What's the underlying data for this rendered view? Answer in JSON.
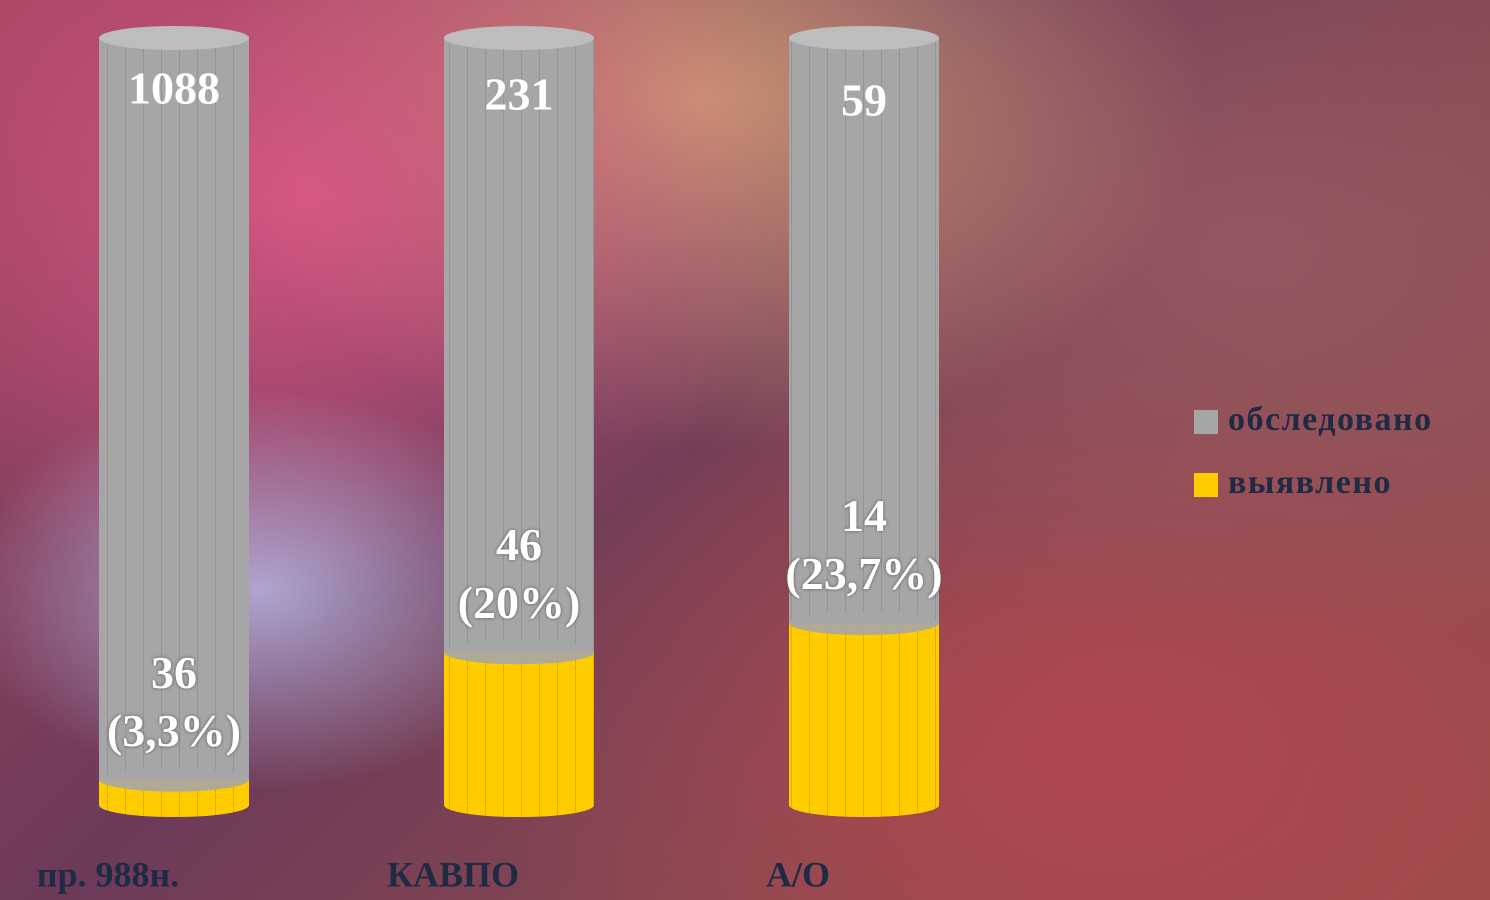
{
  "chart_data": {
    "type": "cylinder",
    "categories": [
      "пр. 988н.",
      "КАВПО",
      "А/О"
    ],
    "series": [
      {
        "name": "обследовано",
        "color": "#a6a6a6",
        "values": [
          1088,
          231,
          59
        ]
      },
      {
        "name": "выявлено",
        "color": "#ffcc00",
        "values": [
          36,
          46,
          14
        ],
        "value_labels": [
          "36 (3,3%)",
          "46 (20%)",
          "14 (23,7%)"
        ]
      }
    ],
    "legend": "right"
  }
}
